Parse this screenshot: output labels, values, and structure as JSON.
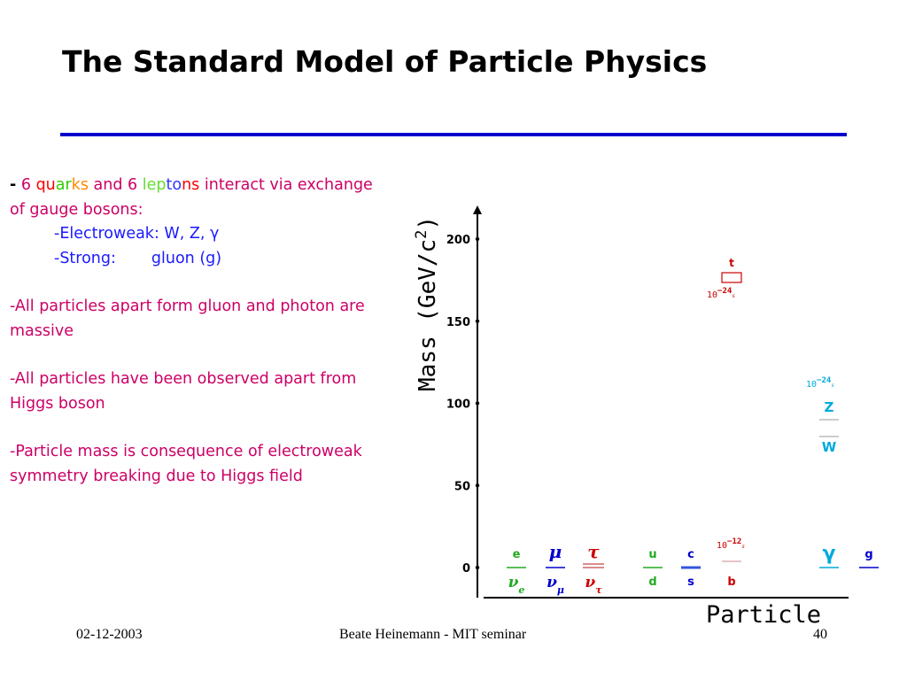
{
  "slide": {
    "title": "The Standard Model of Particle Physics",
    "rule_color": "#0000cc"
  },
  "bullets": {
    "b1_dash": "-",
    "b1_num1": "6",
    "b1_quarks": [
      "qu",
      "ar",
      "ks"
    ],
    "b1_and": "and 6",
    "b1_leptons": [
      "lep",
      "to",
      "ns"
    ],
    "b1_rest": "interact via exchange of gauge bosons:",
    "ew": "-Electroweak: W, Z, γ",
    "strong_label": "-Strong:",
    "strong_value": "gluon (g)",
    "b2": "-All particles apart form gluon  and photon are massive",
    "b3": "-All particles have been observed apart from Higgs boson",
    "b4": "-Particle mass is consequence of electroweak symmetry breaking due to Higgs field"
  },
  "footer": {
    "date": "02-12-2003",
    "center": "Beate Heinemann - MIT seminar",
    "page": "40"
  },
  "chart_data": {
    "type": "scatter",
    "ylabel": "Mass  (GeV/c²)",
    "ylabel_main": "Mass  (GeV/c",
    "ylabel_sup": "2",
    "ylabel_end": ")",
    "xlabel": "Particle",
    "yticks": [
      0,
      50,
      100,
      150,
      200
    ],
    "ylim": [
      0,
      215
    ],
    "particles": [
      {
        "name": "e",
        "mass": 0.000511,
        "color": "#22aa22"
      },
      {
        "name": "νe",
        "mass": 0,
        "color": "#22aa22",
        "lower": true
      },
      {
        "name": "μ",
        "mass": 0.106,
        "color": "#0000cc"
      },
      {
        "name": "νμ",
        "mass": 0,
        "color": "#0000cc",
        "lower": true
      },
      {
        "name": "τ",
        "mass": 1.777,
        "color": "#cc0000"
      },
      {
        "name": "ντ",
        "mass": 0,
        "color": "#cc0000",
        "lower": true
      },
      {
        "name": "u",
        "mass": 0.002,
        "color": "#22aa22"
      },
      {
        "name": "d",
        "mass": 0.005,
        "color": "#22aa22",
        "lower": true
      },
      {
        "name": "c",
        "mass": 1.5,
        "color": "#0000cc"
      },
      {
        "name": "s",
        "mass": 0.1,
        "color": "#0000cc",
        "lower": true
      },
      {
        "name": "t",
        "mass": 178,
        "color": "#cc0000"
      },
      {
        "name": "b",
        "mass": 4.7,
        "color": "#cc0000",
        "lower": true
      },
      {
        "name": "Z",
        "mass": 91.2,
        "color": "#00aadd"
      },
      {
        "name": "W",
        "mass": 80.4,
        "color": "#00aadd"
      },
      {
        "name": "γ",
        "mass": 0,
        "color": "#00aadd"
      },
      {
        "name": "g",
        "mass": 0,
        "color": "#0000cc"
      }
    ],
    "lifetimes": [
      {
        "label": "10",
        "exp": "−24",
        "unit": "s",
        "near": "t",
        "color": "#cc0000"
      },
      {
        "label": "10",
        "exp": "−24",
        "unit": "s",
        "near": "Z",
        "color": "#00aadd"
      },
      {
        "label": "10",
        "exp": "−12",
        "unit": "s",
        "near": "b",
        "color": "#cc0000"
      }
    ]
  }
}
